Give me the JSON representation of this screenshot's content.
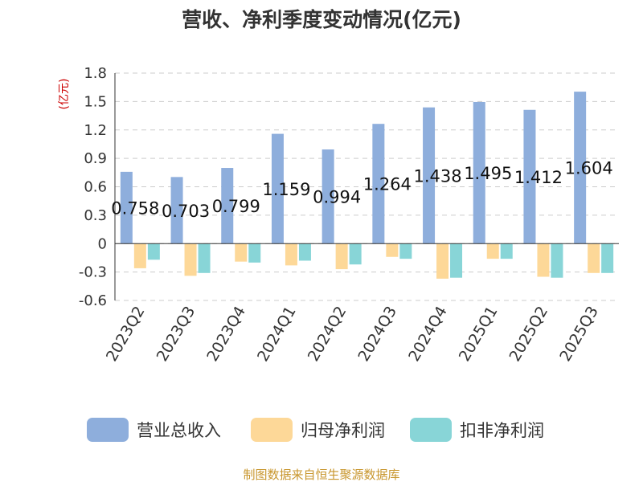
{
  "chart_data": {
    "type": "bar",
    "title": "营收、净利季度变动情况(亿元)",
    "ylabel": "(亿元)",
    "ylim": [
      -0.6,
      1.8
    ],
    "yticks": [
      "1.8",
      "1.5",
      "1.2",
      "0.9",
      "0.6",
      "0.3",
      "0",
      "-0.3",
      "-0.6"
    ],
    "ytick_values": [
      1.8,
      1.5,
      1.2,
      0.9,
      0.6,
      0.3,
      0,
      -0.3,
      -0.6
    ],
    "grid": true,
    "legend_position": "bottom",
    "categories": [
      "2023Q2",
      "2023Q3",
      "2023Q4",
      "2024Q1",
      "2024Q2",
      "2024Q3",
      "2024Q4",
      "2025Q1",
      "2025Q2",
      "2025Q3"
    ],
    "series": [
      {
        "name": "营业总收入",
        "color": "#8eaedc",
        "values": [
          0.758,
          0.703,
          0.799,
          1.159,
          0.994,
          1.264,
          1.438,
          1.495,
          1.412,
          1.604
        ]
      },
      {
        "name": "归母净利润",
        "color": "#fdd898",
        "values": [
          -0.26,
          -0.34,
          -0.19,
          -0.23,
          -0.27,
          -0.14,
          -0.37,
          -0.16,
          -0.35,
          -0.31
        ]
      },
      {
        "name": "扣非净利润",
        "color": "#88d5d7",
        "values": [
          -0.17,
          -0.31,
          -0.2,
          -0.18,
          -0.22,
          -0.16,
          -0.36,
          -0.16,
          -0.36,
          -0.31
        ]
      }
    ],
    "data_labels": [
      "0.758",
      "0.703",
      "0.799",
      "1.159",
      "0.994",
      "1.264",
      "1.438",
      "1.495",
      "1.412",
      "1.604"
    ]
  },
  "footer": {
    "source": "制图数据来自恒生聚源数据库"
  }
}
